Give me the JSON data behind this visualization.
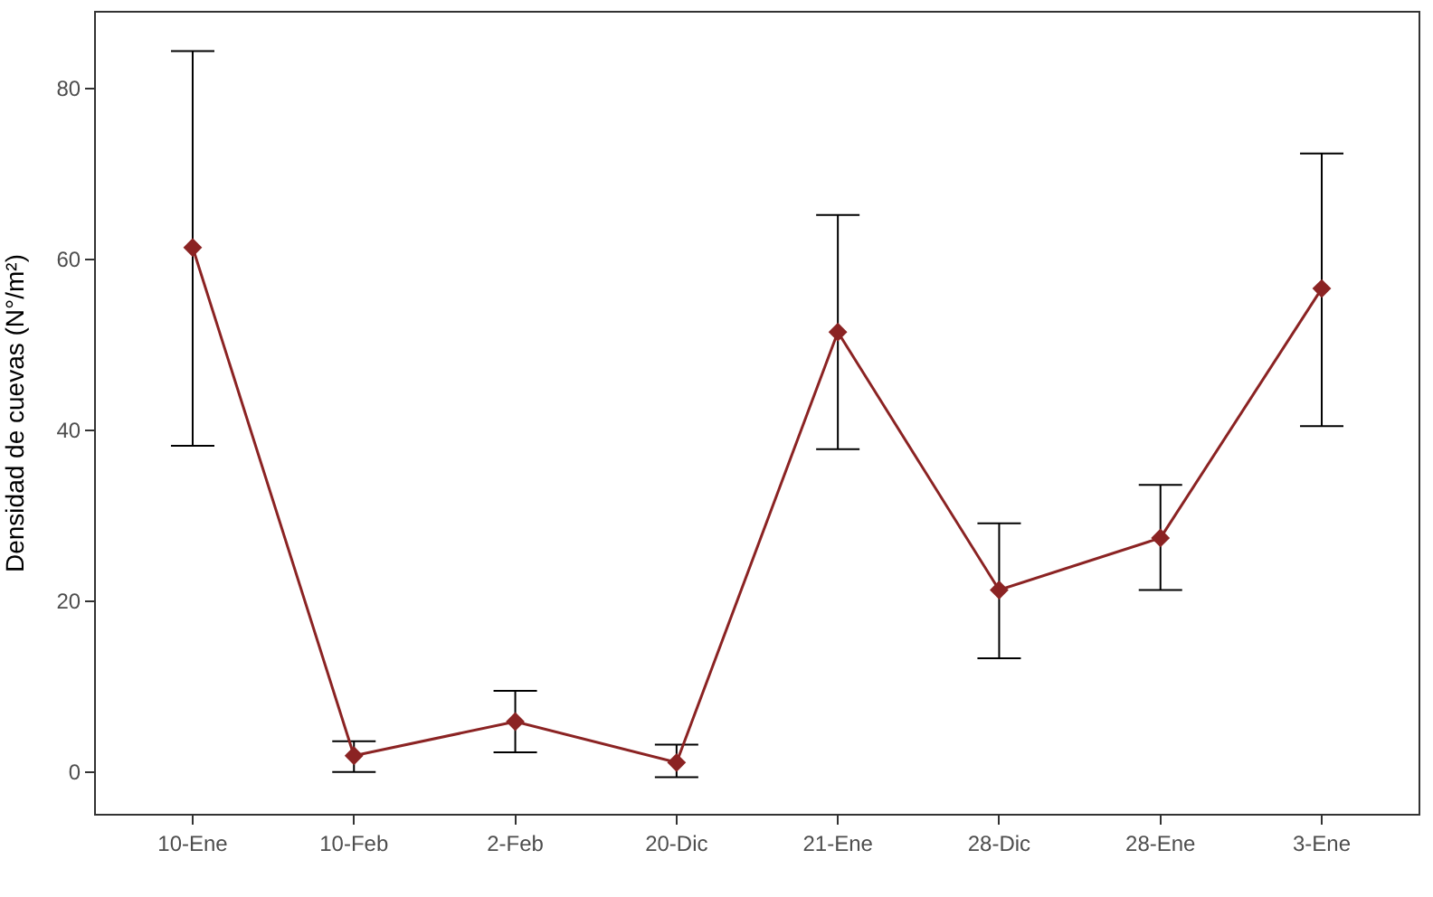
{
  "chart_data": {
    "type": "line",
    "ylabel": "Densidad de cuevas (N°/m²)",
    "categories": [
      "10-Ene",
      "10-Feb",
      "2-Feb",
      "20-Dic",
      "21-Ene",
      "28-Dic",
      "28-Ene",
      "3-Ene"
    ],
    "series": [
      {
        "color": "#8b2323",
        "values": [
          61.4,
          1.9,
          5.9,
          1.1,
          51.5,
          21.3,
          27.4,
          56.6
        ],
        "errors": [
          [
            38.2,
            84.4
          ],
          [
            0,
            3.6
          ],
          [
            2.3,
            9.5
          ],
          [
            -0.6,
            3.2
          ],
          [
            37.8,
            65.2
          ],
          [
            13.3,
            29.1
          ],
          [
            21.3,
            33.6
          ],
          [
            40.5,
            72.4
          ]
        ]
      }
    ],
    "ylim": [
      -4.9,
      88.9
    ],
    "yticks": [
      0,
      20,
      40,
      60,
      80
    ],
    "marker": "diamond",
    "line_style": "solid"
  }
}
